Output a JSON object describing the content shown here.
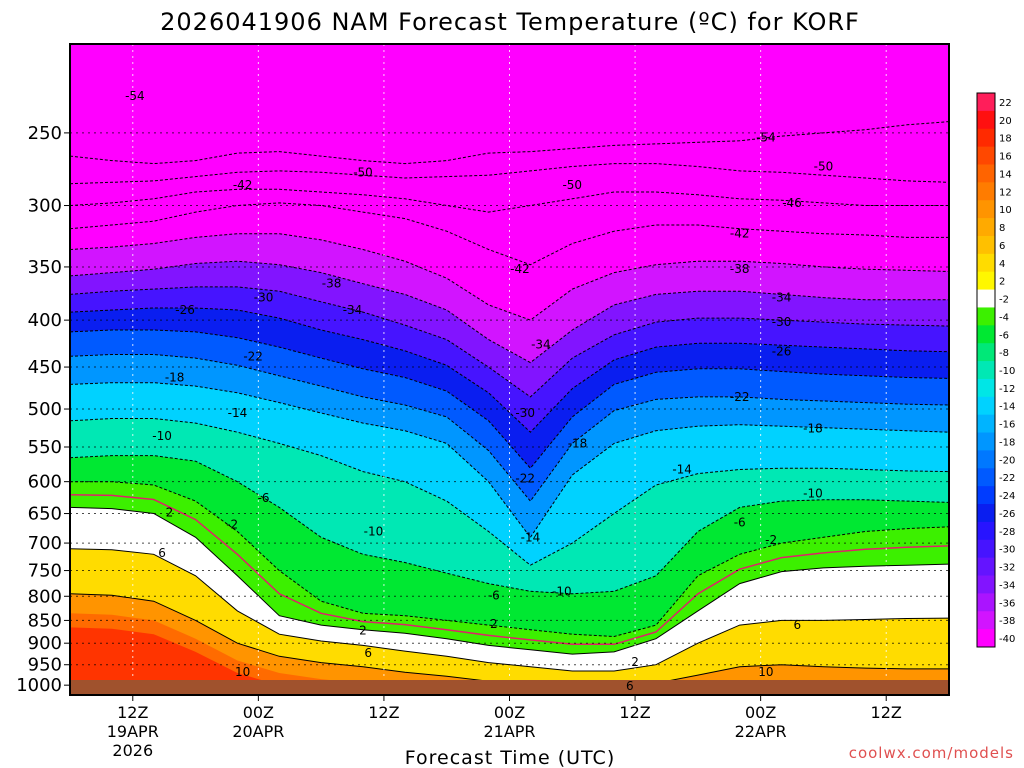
{
  "chart_data": {
    "type": "heatmap",
    "title": "2026041906 NAM Forecast Temperature (ºC) for KORF",
    "xlabel": "Forecast Time (UTC)",
    "ylabel": "",
    "credit": "coolwx.com/models",
    "pressure_range": [
      1025,
      200
    ],
    "time_range_hours": [
      0,
      84
    ],
    "pressure_ticks": [
      250,
      300,
      350,
      400,
      450,
      500,
      550,
      600,
      650,
      700,
      750,
      800,
      850,
      900,
      950,
      1000
    ],
    "time_ticks": [
      {
        "hour": 6,
        "label": "12Z",
        "sub1": "19APR",
        "sub2": "2026"
      },
      {
        "hour": 18,
        "label": "00Z",
        "sub1": "20APR",
        "sub2": ""
      },
      {
        "hour": 30,
        "label": "12Z",
        "sub1": "",
        "sub2": ""
      },
      {
        "hour": 42,
        "label": "00Z",
        "sub1": "21APR",
        "sub2": ""
      },
      {
        "hour": 54,
        "label": "12Z",
        "sub1": "",
        "sub2": ""
      },
      {
        "hour": 66,
        "label": "00Z",
        "sub1": "22APR",
        "sub2": ""
      },
      {
        "hour": 78,
        "label": "12Z",
        "sub1": "",
        "sub2": ""
      }
    ],
    "colorbar": [
      {
        "value": 22,
        "color": "#ff1e5a"
      },
      {
        "value": 20,
        "color": "#ff1010"
      },
      {
        "value": 18,
        "color": "#ff2a00"
      },
      {
        "value": 16,
        "color": "#ff4800"
      },
      {
        "value": 14,
        "color": "#ff6400"
      },
      {
        "value": 12,
        "color": "#ff7c00"
      },
      {
        "value": 10,
        "color": "#ff9400"
      },
      {
        "value": 8,
        "color": "#ffaa00"
      },
      {
        "value": 6,
        "color": "#ffc000"
      },
      {
        "value": 4,
        "color": "#ffdc00"
      },
      {
        "value": 2,
        "color": "#fff700"
      },
      {
        "value": -2,
        "color": "#ffffff"
      },
      {
        "value": -4,
        "color": "#3cf000"
      },
      {
        "value": -6,
        "color": "#00e832"
      },
      {
        "value": -8,
        "color": "#00e878"
      },
      {
        "value": -10,
        "color": "#00e8b4"
      },
      {
        "value": -12,
        "color": "#00e6e6"
      },
      {
        "value": -14,
        "color": "#00d2ff"
      },
      {
        "value": -16,
        "color": "#00b4ff"
      },
      {
        "value": -18,
        "color": "#0096ff"
      },
      {
        "value": -20,
        "color": "#0078ff"
      },
      {
        "value": -22,
        "color": "#005aff"
      },
      {
        "value": -24,
        "color": "#003cff"
      },
      {
        "value": -26,
        "color": "#0a1ef0"
      },
      {
        "value": -28,
        "color": "#2814ff"
      },
      {
        "value": -30,
        "color": "#4614ff"
      },
      {
        "value": -32,
        "color": "#6414ff"
      },
      {
        "value": -34,
        "color": "#8214ff"
      },
      {
        "value": -36,
        "color": "#aa14ff"
      },
      {
        "value": -38,
        "color": "#d214ff"
      },
      {
        "value": -40,
        "color": "#ff00ff"
      }
    ],
    "bottom_color": "#ff00ff",
    "ground_color": "#a0522d",
    "series": [
      {
        "name": "-54",
        "values": [
          265,
          268,
          270,
          268,
          263,
          262,
          265,
          268,
          270,
          268,
          263,
          262,
          260,
          258,
          257,
          256,
          255,
          252,
          250,
          248,
          245,
          243
        ]
      },
      {
        "name": "-50",
        "values": [
          284,
          283,
          282,
          279,
          276,
          275,
          276,
          278,
          280,
          279,
          278,
          275,
          272,
          270,
          270,
          272,
          275,
          276,
          278,
          280,
          282,
          283
        ]
      },
      {
        "name": "-46",
        "values": [
          300,
          298,
          295,
          290,
          288,
          288,
          290,
          292,
          295,
          300,
          305,
          300,
          295,
          290,
          290,
          292,
          295,
          296,
          298,
          300,
          300,
          300
        ]
      },
      {
        "name": "-42",
        "values": [
          318,
          315,
          312,
          305,
          300,
          298,
          300,
          305,
          310,
          320,
          335,
          348,
          330,
          320,
          315,
          315,
          318,
          320,
          322,
          323,
          325,
          325
        ]
      },
      {
        "name": "-38",
        "values": [
          335,
          333,
          330,
          325,
          322,
          322,
          327,
          335,
          345,
          360,
          385,
          400,
          370,
          355,
          348,
          345,
          345,
          347,
          350,
          352,
          353,
          354
        ]
      },
      {
        "name": "-34",
        "values": [
          358,
          355,
          352,
          347,
          345,
          348,
          355,
          365,
          375,
          390,
          420,
          445,
          410,
          385,
          375,
          372,
          372,
          375,
          378,
          380,
          380,
          380
        ]
      },
      {
        "name": "-30",
        "values": [
          375,
          372,
          370,
          368,
          368,
          372,
          382,
          392,
          405,
          420,
          450,
          485,
          440,
          415,
          402,
          398,
          398,
          400,
          402,
          404,
          405,
          406
        ]
      },
      {
        "name": "-26",
        "values": [
          392,
          390,
          388,
          388,
          390,
          398,
          410,
          420,
          432,
          448,
          480,
          530,
          475,
          442,
          428,
          424,
          424,
          426,
          428,
          430,
          432,
          433
        ]
      },
      {
        "name": "-22",
        "values": [
          412,
          410,
          410,
          412,
          418,
          428,
          440,
          452,
          462,
          478,
          515,
          580,
          510,
          470,
          456,
          452,
          452,
          455,
          458,
          460,
          462,
          463
        ]
      },
      {
        "name": "-18",
        "values": [
          438,
          436,
          436,
          440,
          448,
          460,
          472,
          485,
          495,
          510,
          555,
          630,
          545,
          502,
          488,
          485,
          485,
          488,
          490,
          492,
          494,
          495
        ]
      },
      {
        "name": "-14",
        "values": [
          470,
          468,
          468,
          472,
          480,
          492,
          505,
          518,
          528,
          545,
          600,
          690,
          590,
          545,
          528,
          522,
          520,
          522,
          524,
          526,
          528,
          530
        ]
      },
      {
        "name": "-10",
        "values": [
          515,
          512,
          512,
          518,
          530,
          545,
          562,
          585,
          600,
          630,
          680,
          740,
          700,
          650,
          605,
          588,
          582,
          580,
          580,
          582,
          584,
          585
        ]
      },
      {
        "name": "-6",
        "values": [
          565,
          562,
          562,
          570,
          600,
          640,
          690,
          720,
          735,
          755,
          775,
          790,
          795,
          790,
          760,
          680,
          640,
          630,
          628,
          628,
          630,
          632
        ]
      },
      {
        "name": "-2",
        "values": [
          600,
          600,
          605,
          630,
          680,
          750,
          810,
          835,
          840,
          850,
          860,
          870,
          880,
          885,
          860,
          760,
          720,
          700,
          690,
          680,
          675,
          672
        ]
      },
      {
        "name": "2",
        "values": [
          640,
          642,
          650,
          690,
          760,
          840,
          860,
          870,
          878,
          890,
          905,
          915,
          925,
          920,
          890,
          830,
          775,
          752,
          745,
          742,
          740,
          738
        ]
      },
      {
        "name": "6",
        "values": [
          710,
          712,
          720,
          760,
          830,
          880,
          895,
          905,
          918,
          930,
          945,
          955,
          965,
          965,
          950,
          900,
          860,
          850,
          850,
          848,
          846,
          845
        ]
      },
      {
        "name": "10",
        "values": [
          795,
          798,
          810,
          850,
          900,
          930,
          945,
          955,
          968,
          978,
          990,
          1000,
          1005,
          1002,
          995,
          975,
          955,
          950,
          955,
          958,
          960,
          960
        ]
      }
    ],
    "contour_labels": [
      {
        "text": "-54",
        "hour": 6.2,
        "p": 228
      },
      {
        "text": "-54",
        "hour": 66.5,
        "p": 253
      },
      {
        "text": "-50",
        "hour": 28,
        "p": 276
      },
      {
        "text": "-50",
        "hour": 48,
        "p": 285
      },
      {
        "text": "-50",
        "hour": 72,
        "p": 272
      },
      {
        "text": "-46",
        "hour": 69,
        "p": 298
      },
      {
        "text": "-42",
        "hour": 16.5,
        "p": 285
      },
      {
        "text": "-42",
        "hour": 43,
        "p": 352
      },
      {
        "text": "-42",
        "hour": 64,
        "p": 322
      },
      {
        "text": "-38",
        "hour": 25,
        "p": 365
      },
      {
        "text": "-38",
        "hour": 64,
        "p": 352
      },
      {
        "text": "-34",
        "hour": 27,
        "p": 390
      },
      {
        "text": "-34",
        "hour": 45,
        "p": 425
      },
      {
        "text": "-34",
        "hour": 68,
        "p": 378
      },
      {
        "text": "-30",
        "hour": 18.5,
        "p": 378
      },
      {
        "text": "-30",
        "hour": 43.5,
        "p": 505
      },
      {
        "text": "-30",
        "hour": 68,
        "p": 402
      },
      {
        "text": "-26",
        "hour": 11,
        "p": 390
      },
      {
        "text": "-26",
        "hour": 68,
        "p": 433
      },
      {
        "text": "-22",
        "hour": 17.5,
        "p": 438
      },
      {
        "text": "-22",
        "hour": 43.5,
        "p": 595
      },
      {
        "text": "-22",
        "hour": 64,
        "p": 485
      },
      {
        "text": "-18",
        "hour": 10,
        "p": 462
      },
      {
        "text": "-18",
        "hour": 48.5,
        "p": 545
      },
      {
        "text": "-18",
        "hour": 71,
        "p": 525
      },
      {
        "text": "-14",
        "hour": 16,
        "p": 505
      },
      {
        "text": "-14",
        "hour": 44,
        "p": 690
      },
      {
        "text": "-14",
        "hour": 58.5,
        "p": 582
      },
      {
        "text": "-10",
        "hour": 8.8,
        "p": 535
      },
      {
        "text": "-10",
        "hour": 29,
        "p": 680
      },
      {
        "text": "-10",
        "hour": 47,
        "p": 790
      },
      {
        "text": "-10",
        "hour": 71,
        "p": 618
      },
      {
        "text": "-6",
        "hour": 18.5,
        "p": 625
      },
      {
        "text": "-6",
        "hour": 40.5,
        "p": 798
      },
      {
        "text": "-6",
        "hour": 64,
        "p": 665
      },
      {
        "text": "-2",
        "hour": 15.5,
        "p": 668
      },
      {
        "text": "-2",
        "hour": 67,
        "p": 695
      },
      {
        "text": "2",
        "hour": 9.5,
        "p": 648
      },
      {
        "text": "2",
        "hour": 28,
        "p": 872
      },
      {
        "text": "2",
        "hour": 40.5,
        "p": 858
      },
      {
        "text": "2",
        "hour": 54,
        "p": 943
      },
      {
        "text": "6",
        "hour": 8.8,
        "p": 718
      },
      {
        "text": "6",
        "hour": 28.5,
        "p": 922
      },
      {
        "text": "6",
        "hour": 53.5,
        "p": 1002
      },
      {
        "text": "6",
        "hour": 69.5,
        "p": 860
      },
      {
        "text": "10",
        "hour": 16.5,
        "p": 968
      },
      {
        "text": "10",
        "hour": 66.5,
        "p": 968
      }
    ]
  }
}
